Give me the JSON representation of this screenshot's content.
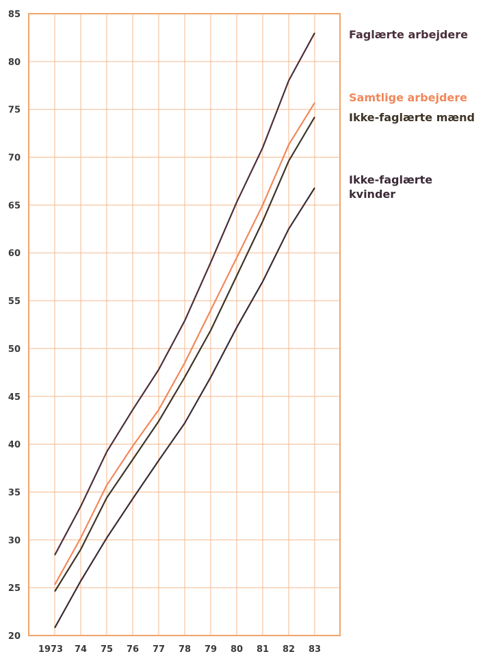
{
  "chart_data": {
    "type": "line",
    "title": "",
    "xlabel": "",
    "ylabel": "",
    "x": [
      "1973",
      "74",
      "75",
      "76",
      "77",
      "78",
      "79",
      "80",
      "81",
      "82",
      "83"
    ],
    "ylim": [
      20,
      85
    ],
    "yticks": [
      "20",
      "25",
      "30",
      "35",
      "40",
      "45",
      "50",
      "55",
      "60",
      "65",
      "70",
      "75",
      "80",
      "85"
    ],
    "grid": true,
    "legend_placement": "right",
    "series": [
      {
        "name": "Faglærte arbejdere",
        "color": "#4a2e3a",
        "values": [
          28.4,
          33.5,
          39.2,
          43.6,
          47.8,
          52.9,
          59.0,
          65.3,
          71.0,
          78.0,
          83.0
        ]
      },
      {
        "name": "Samtlige arbejdere",
        "color": "#f2875a",
        "values": [
          25.3,
          30.2,
          35.7,
          39.8,
          43.6,
          48.5,
          54.0,
          59.5,
          65.0,
          71.3,
          75.7
        ]
      },
      {
        "name": "Ikke-faglærte mænd",
        "color": "#3d3326",
        "values": [
          24.6,
          29.0,
          34.4,
          38.4,
          42.4,
          47.0,
          51.9,
          57.6,
          63.3,
          69.6,
          74.2
        ]
      },
      {
        "name": "Ikke-faglærte kvinder",
        "color": "#3b2a36",
        "values": [
          20.8,
          25.7,
          30.2,
          34.3,
          38.3,
          42.2,
          47.0,
          52.2,
          57.0,
          62.5,
          66.8
        ]
      }
    ]
  },
  "colors": {
    "grid": "#f4b98c",
    "frame": "#f2a46a",
    "tick_text": "#3a3a3a"
  },
  "legend": {
    "faglaerte": "Faglærte arbejdere",
    "samtlige": "Samtlige arbejdere",
    "ikke_maend": "Ikke-faglærte mænd",
    "ikke_kvinder_line1": "Ikke-faglærte",
    "ikke_kvinder_line2": "kvinder"
  }
}
